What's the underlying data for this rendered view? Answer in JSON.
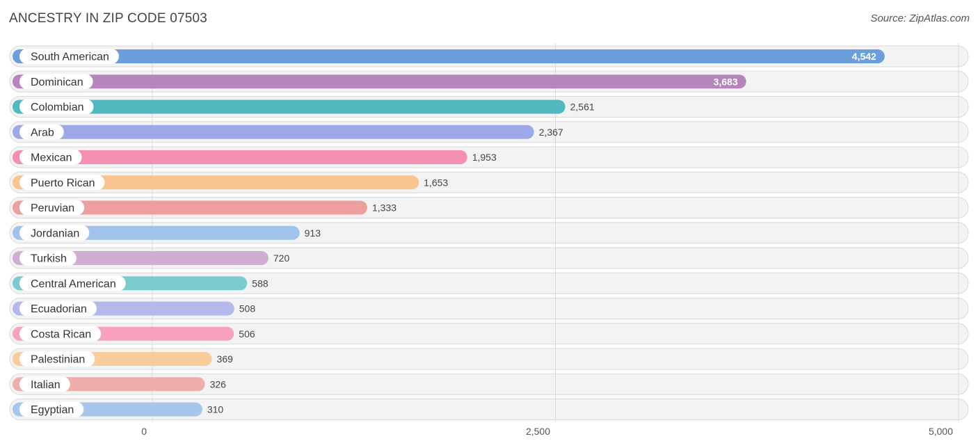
{
  "header": {
    "title": "ANCESTRY IN ZIP CODE 07503",
    "source": "Source: ZipAtlas.com"
  },
  "chart_data": {
    "type": "bar",
    "orientation": "horizontal",
    "title": "ANCESTRY IN ZIP CODE 07503",
    "categories": [
      "South American",
      "Dominican",
      "Colombian",
      "Arab",
      "Mexican",
      "Puerto Rican",
      "Peruvian",
      "Jordanian",
      "Turkish",
      "Central American",
      "Ecuadorian",
      "Costa Rican",
      "Palestinian",
      "Italian",
      "Egyptian"
    ],
    "values": [
      4542,
      3683,
      2561,
      2367,
      1953,
      1653,
      1333,
      913,
      720,
      588,
      508,
      506,
      369,
      326,
      310
    ],
    "value_labels": [
      "4,542",
      "3,683",
      "2,561",
      "2,367",
      "1,953",
      "1,653",
      "1,333",
      "913",
      "720",
      "588",
      "508",
      "506",
      "369",
      "326",
      "310"
    ],
    "colors": [
      "#6a9fdc",
      "#b586bb",
      "#52b9c1",
      "#9da8e6",
      "#f58fb0",
      "#f9c48e",
      "#ec9f9d",
      "#9fc3ea",
      "#cfaed2",
      "#7ccccf",
      "#b3b9ec",
      "#f7a1bf",
      "#f9cc9c",
      "#efaeab",
      "#a6c6ec"
    ],
    "xlim": [
      0,
      5000
    ],
    "ticks": [
      0,
      2500,
      5000
    ],
    "tick_labels": [
      "0",
      "2,500",
      "5,000"
    ],
    "xlabel": "",
    "ylabel": "",
    "grid": true
  }
}
